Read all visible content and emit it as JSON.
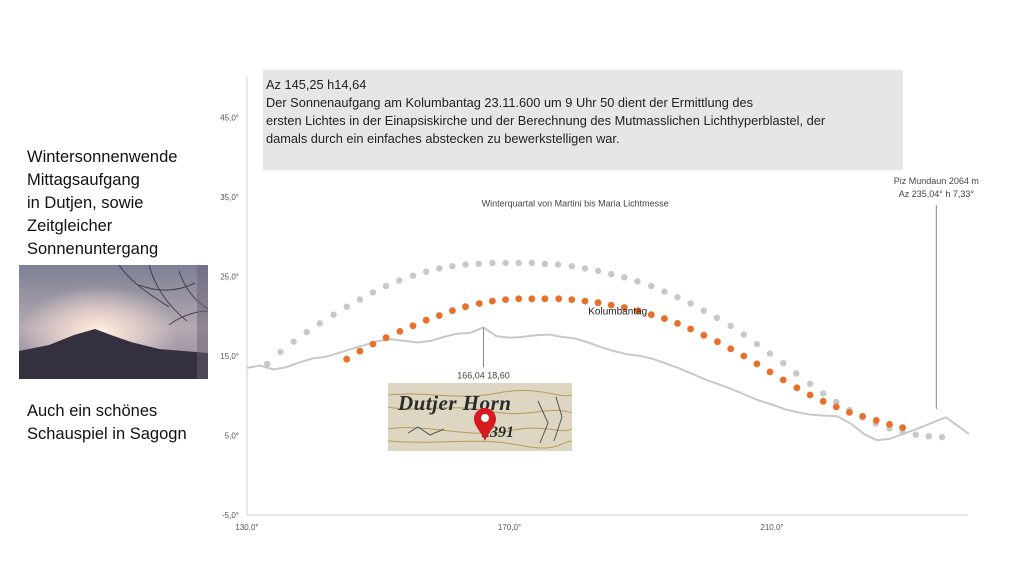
{
  "side_text": {
    "title": "Wintersonnenwende\nMittagsaufgang\nin Dutjen, sowie\nZeitgleicher\nSonnenuntergang",
    "caption": "Auch ein schönes\nSchauspiel in Sagogn"
  },
  "info_box": {
    "line1": "Az 145,25 h14,64",
    "line2": "Der Sonnenaufgang am Kolumbantag 23.11.600 um 9 Uhr 50  dient der Ermittlung des",
    "line3": "ersten Lichtes  in der Einapsiskirche und der Berechnung des Mutmasslichen Lichthyperblastel, der",
    "line4": "damals durch ein einfaches abstecken  zu bewerkstelligen war."
  },
  "map_inset": {
    "label": "Dutjer Horn",
    "elevation": "2391"
  },
  "colors": {
    "kolumbantag": "#e8702a",
    "winterquartal": "#c8c8c8",
    "horizon": "#c8c8c8",
    "axis": "#d0d0d0",
    "info_box_bg": "#e6e6e6",
    "marker": "#d71920"
  },
  "chart_data": {
    "type": "scatter",
    "title": "",
    "xlabel": "",
    "ylabel": "",
    "xlim": [
      130,
      240
    ],
    "ylim": [
      -5,
      50
    ],
    "x_ticks": [
      "130,0°",
      "170,0°",
      "210,0°"
    ],
    "x_tick_values": [
      130,
      170,
      210
    ],
    "y_ticks": [
      "-5,0°",
      "5,0°",
      "15,0°",
      "25,0°",
      "35,0°",
      "45,0°"
    ],
    "y_tick_values": [
      -5,
      5,
      15,
      25,
      35,
      45
    ],
    "grid": false,
    "legend": "none",
    "series": [
      {
        "name": "Winterquartal  von Martini bis Maria Lichtmesse",
        "style": "dots",
        "x": [
          133.1,
          135.1,
          137.1,
          139.1,
          141.1,
          143.2,
          145.2,
          147.2,
          149.2,
          151.2,
          153.2,
          155.3,
          157.3,
          159.3,
          161.3,
          163.3,
          165.3,
          167.4,
          169.4,
          171.4,
          173.4,
          175.4,
          177.4,
          179.5,
          181.5,
          183.5,
          185.5,
          187.5,
          189.5,
          191.6,
          193.6,
          195.6,
          197.6,
          199.6,
          201.6,
          203.7,
          205.7,
          207.7,
          209.7,
          211.7,
          213.7,
          215.8,
          217.8,
          219.8,
          221.8,
          223.8,
          225.8,
          227.9,
          229.9,
          231.9,
          233.9,
          235.9
        ],
        "y": [
          14.0,
          15.5,
          16.8,
          18.0,
          19.1,
          20.2,
          21.2,
          22.1,
          23.0,
          23.8,
          24.5,
          25.1,
          25.6,
          26.0,
          26.3,
          26.5,
          26.6,
          26.7,
          26.7,
          26.7,
          26.7,
          26.6,
          26.5,
          26.3,
          26.0,
          25.7,
          25.3,
          24.9,
          24.4,
          23.8,
          23.1,
          22.4,
          21.6,
          20.7,
          19.8,
          18.8,
          17.7,
          16.5,
          15.3,
          14.1,
          12.8,
          11.5,
          10.3,
          9.2,
          8.2,
          7.3,
          6.5,
          5.9,
          5.4,
          5.1,
          4.9,
          4.8
        ]
      },
      {
        "name": "Kolumbantag",
        "style": "dots",
        "x": [
          145.2,
          147.2,
          149.2,
          151.2,
          153.3,
          155.3,
          157.3,
          159.3,
          161.3,
          163.3,
          165.4,
          167.4,
          169.4,
          171.4,
          173.4,
          175.4,
          177.5,
          179.5,
          181.5,
          183.5,
          185.5,
          187.5,
          189.6,
          191.6,
          193.6,
          195.6,
          197.6,
          199.6,
          201.7,
          203.7,
          205.7,
          207.7,
          209.7,
          211.7,
          213.8,
          215.8,
          217.8,
          219.8,
          221.8,
          223.8,
          225.9,
          227.9,
          229.9
        ],
        "y": [
          14.6,
          15.6,
          16.5,
          17.3,
          18.1,
          18.8,
          19.5,
          20.1,
          20.7,
          21.2,
          21.6,
          21.9,
          22.1,
          22.2,
          22.2,
          22.2,
          22.2,
          22.1,
          21.9,
          21.7,
          21.4,
          21.1,
          20.7,
          20.2,
          19.7,
          19.1,
          18.4,
          17.6,
          16.8,
          15.9,
          15.0,
          14.0,
          13.0,
          12.0,
          11.0,
          10.1,
          9.3,
          8.6,
          7.9,
          7.4,
          6.9,
          6.4,
          6.0
        ]
      },
      {
        "name": "Horizont",
        "style": "line",
        "x": [
          130.0,
          132.0,
          134.0,
          136.0,
          138.0,
          140.0,
          142.0,
          144.0,
          146.0,
          148.0,
          150.0,
          152.0,
          154.0,
          156.0,
          158.0,
          160.0,
          162.0,
          164.0,
          166.0,
          168.0,
          170.0,
          172.0,
          174.0,
          176.0,
          178.0,
          180.0,
          182.0,
          184.0,
          186.0,
          188.0,
          190.0,
          192.0,
          194.0,
          196.0,
          198.0,
          200.0,
          202.0,
          204.0,
          206.0,
          208.0,
          210.0,
          212.0,
          214.0,
          216.0,
          218.0,
          220.0,
          222.0,
          224.0,
          226.0,
          228.0,
          230.0,
          232.0,
          233.5,
          235.0,
          236.5,
          238.0,
          240.0
        ],
        "y": [
          13.5,
          13.8,
          13.3,
          13.6,
          14.2,
          14.7,
          14.9,
          15.4,
          15.9,
          16.4,
          16.9,
          17.1,
          16.9,
          16.7,
          16.9,
          17.4,
          17.8,
          17.9,
          18.6,
          17.5,
          17.3,
          17.4,
          17.6,
          17.7,
          17.4,
          17.2,
          16.7,
          16.1,
          15.6,
          15.2,
          15.0,
          14.6,
          14.0,
          13.4,
          12.7,
          12.0,
          11.4,
          10.8,
          10.1,
          9.4,
          8.9,
          8.3,
          7.9,
          7.6,
          7.5,
          7.4,
          6.5,
          5.2,
          4.4,
          4.6,
          5.2,
          5.8,
          6.3,
          6.8,
          7.3,
          6.4,
          5.2
        ]
      }
    ],
    "annotations": [
      {
        "text": "Winterquartal  von Martini bis Maria Lichtmesse",
        "x": 180,
        "y": 33.8
      },
      {
        "text": "Kolumbantag",
        "x": 182,
        "y": 20.2
      },
      {
        "text": "166,04 18,60",
        "x": 166.04,
        "y": 18.6,
        "label_below": true
      },
      {
        "text": "Piz Mundaun 2064 m",
        "text2": "Az 235,04° h 7,33°",
        "x": 235.04,
        "y": 7.33
      }
    ]
  }
}
